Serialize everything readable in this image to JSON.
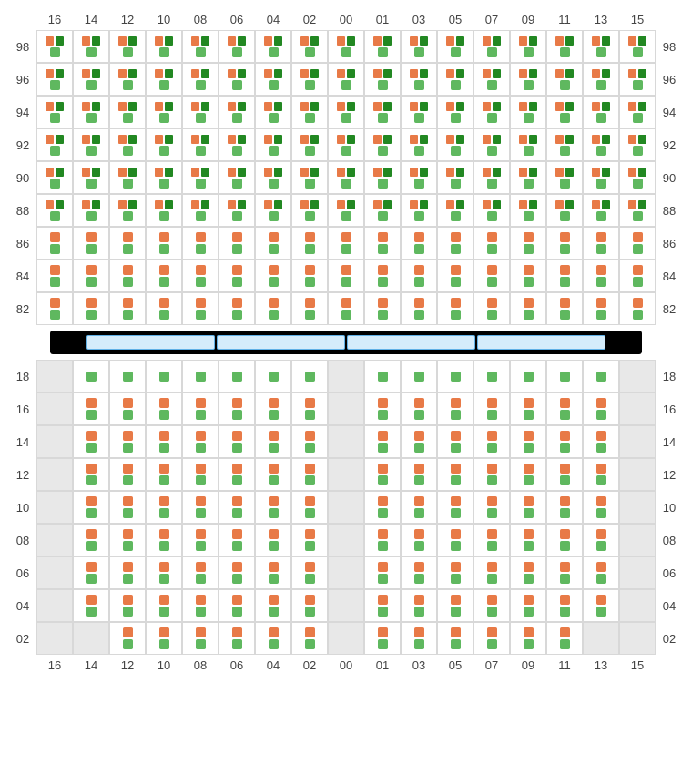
{
  "colors": {
    "orange": "#e87a47",
    "green": "#5fb85f",
    "darkgreen": "#228822",
    "divider_fill": "#d4ecfb",
    "divider_border": "#5fb0e6",
    "empty": "#e8e8e8",
    "grid_border": "#d8d8d8"
  },
  "column_labels": [
    "16",
    "14",
    "12",
    "10",
    "08",
    "06",
    "04",
    "02",
    "00",
    "01",
    "03",
    "05",
    "07",
    "09",
    "11",
    "13",
    "15"
  ],
  "top_section": {
    "rows": [
      {
        "label": "98",
        "pattern": "A"
      },
      {
        "label": "96",
        "pattern": "A"
      },
      {
        "label": "94",
        "pattern": "A"
      },
      {
        "label": "92",
        "pattern": "A"
      },
      {
        "label": "90",
        "pattern": "A"
      },
      {
        "label": "88",
        "pattern": "A"
      },
      {
        "label": "86",
        "pattern": "B"
      },
      {
        "label": "84",
        "pattern": "B"
      },
      {
        "label": "82",
        "pattern": "B"
      }
    ],
    "patterns": {
      "A": {
        "top": [
          "orange",
          "darkgreen"
        ],
        "bottom": [
          "green"
        ],
        "cols": "all"
      },
      "B": {
        "top": [
          "orange"
        ],
        "bottom": [
          "green"
        ],
        "cols": "all"
      }
    }
  },
  "divider_segments": 4,
  "bottom_section": {
    "rows": [
      {
        "label": "18",
        "type": "toprow"
      },
      {
        "label": "16",
        "type": "std"
      },
      {
        "label": "14",
        "type": "std"
      },
      {
        "label": "12",
        "type": "std"
      },
      {
        "label": "10",
        "type": "std"
      },
      {
        "label": "08",
        "type": "std"
      },
      {
        "label": "06",
        "type": "std"
      },
      {
        "label": "04",
        "type": "std"
      },
      {
        "label": "02",
        "type": "botrow"
      }
    ],
    "empty_columns": [
      0,
      8,
      16
    ],
    "toprow_content": {
      "top": [
        "green"
      ]
    },
    "std_content": {
      "top": [
        "orange"
      ],
      "bottom": [
        "green"
      ]
    },
    "botrow_extra_empty": [
      1,
      15
    ]
  }
}
